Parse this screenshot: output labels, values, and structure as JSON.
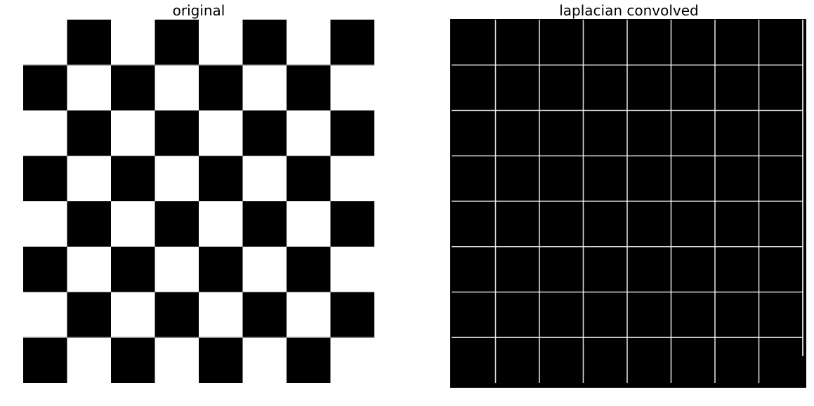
{
  "panels": {
    "left": {
      "title": "original"
    },
    "right": {
      "title": "laplacian convolved"
    }
  },
  "boards": {
    "rows": 8,
    "cols": 8,
    "original": {
      "dark_color": "#000000",
      "light_color": "#ffffff",
      "top_left_square": "light"
    },
    "laplacian": {
      "fill_color": "#000000",
      "edge_color": "#ffffff"
    }
  }
}
